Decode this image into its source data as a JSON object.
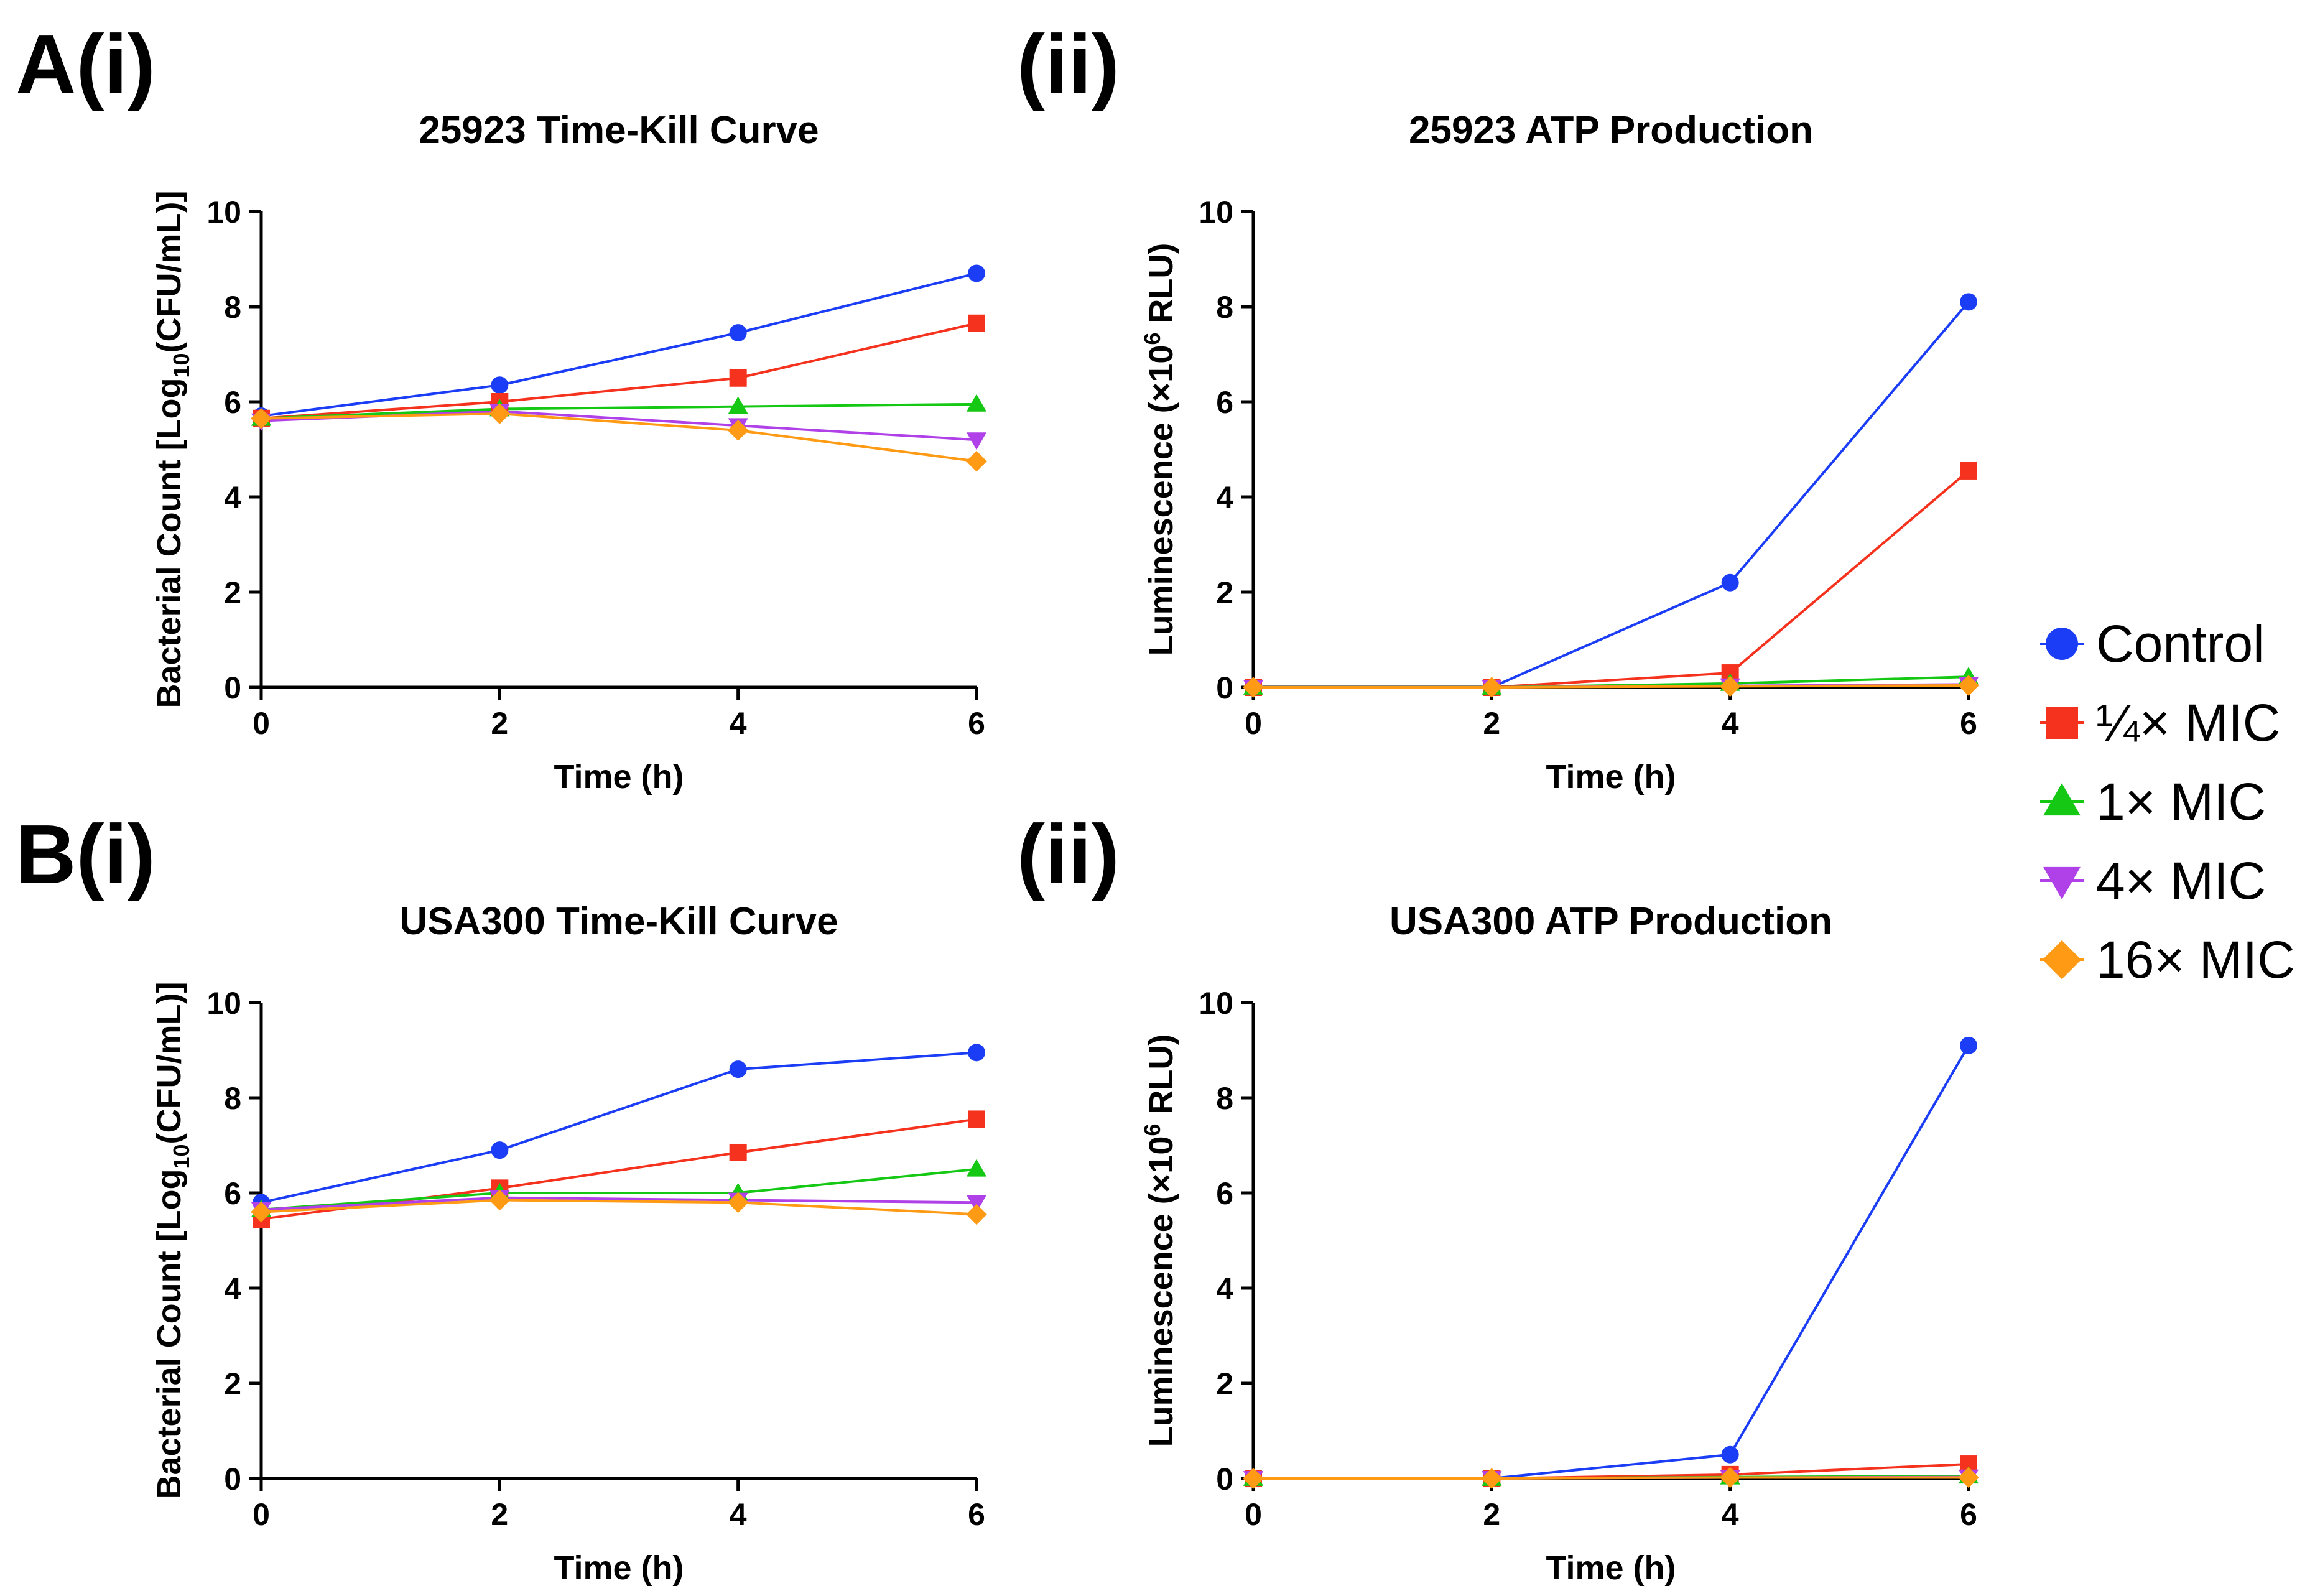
{
  "panel_labels": [
    "A(i)",
    "(ii)",
    "B(i)",
    "(ii)"
  ],
  "colors": {
    "Control": "#1a3df5",
    "quarter_mic": "#f5321e",
    "one_mic": "#14c814",
    "four_mic": "#b040e8",
    "sixteen_mic": "#ff9a14"
  },
  "legend": [
    {
      "label": "Control",
      "marker": "circle",
      "color": "#1a3df5"
    },
    {
      "label": "¼× MIC",
      "marker": "square",
      "color": "#f5321e"
    },
    {
      "label": "1× MIC",
      "marker": "triangle-up",
      "color": "#14c814"
    },
    {
      "label": "4× MIC",
      "marker": "triangle-down",
      "color": "#b040e8"
    },
    {
      "label": "16× MIC",
      "marker": "diamond",
      "color": "#ff9a14"
    }
  ],
  "chart_data": [
    {
      "type": "line",
      "title": "25923 Time-Kill Curve",
      "xlabel": "Time (h)",
      "ylabel_parts": [
        "Bacterial Count [Log",
        "10",
        "(CFU/mL)]"
      ],
      "x": [
        0,
        2,
        4,
        6
      ],
      "xlim": [
        0,
        6
      ],
      "ylim": [
        0,
        10
      ],
      "xticks": [
        0,
        2,
        4,
        6
      ],
      "yticks": [
        0,
        2,
        4,
        6,
        8,
        10
      ],
      "series": [
        {
          "name": "Control",
          "values": [
            5.7,
            6.35,
            7.45,
            8.7
          ]
        },
        {
          "name": "¼× MIC",
          "values": [
            5.65,
            6.0,
            6.5,
            7.65
          ]
        },
        {
          "name": "1× MIC",
          "values": [
            5.65,
            5.85,
            5.9,
            5.95
          ]
        },
        {
          "name": "4× MIC",
          "values": [
            5.6,
            5.8,
            5.5,
            5.2
          ]
        },
        {
          "name": "16× MIC",
          "values": [
            5.65,
            5.75,
            5.4,
            4.75
          ]
        }
      ]
    },
    {
      "type": "line",
      "title": "25923 ATP Production",
      "xlabel": "Time (h)",
      "ylabel_parts": [
        "Luminescence (×10",
        "6",
        " RLU)"
      ],
      "x": [
        0,
        2,
        4,
        6
      ],
      "xlim": [
        0,
        6
      ],
      "ylim": [
        0,
        10
      ],
      "xticks": [
        0,
        2,
        4,
        6
      ],
      "yticks": [
        0,
        2,
        4,
        6,
        8,
        10
      ],
      "series": [
        {
          "name": "Control",
          "values": [
            0,
            0,
            2.2,
            8.1
          ]
        },
        {
          "name": "¼× MIC",
          "values": [
            0,
            0,
            0.3,
            4.55
          ]
        },
        {
          "name": "1× MIC",
          "values": [
            0,
            0,
            0.08,
            0.22
          ]
        },
        {
          "name": "4× MIC",
          "values": [
            0,
            0,
            0.03,
            0.06
          ]
        },
        {
          "name": "16× MIC",
          "values": [
            0,
            0,
            0.02,
            0.04
          ]
        }
      ]
    },
    {
      "type": "line",
      "title": "USA300 Time-Kill Curve",
      "xlabel": "Time (h)",
      "ylabel_parts": [
        "Bacterial Count [Log",
        "10",
        "(CFU/mL)]"
      ],
      "x": [
        0,
        2,
        4,
        6
      ],
      "xlim": [
        0,
        6
      ],
      "ylim": [
        0,
        10
      ],
      "xticks": [
        0,
        2,
        4,
        6
      ],
      "yticks": [
        0,
        2,
        4,
        6,
        8,
        10
      ],
      "series": [
        {
          "name": "Control",
          "values": [
            5.8,
            6.9,
            8.6,
            8.95
          ]
        },
        {
          "name": "¼× MIC",
          "values": [
            5.45,
            6.1,
            6.85,
            7.55
          ]
        },
        {
          "name": "1× MIC",
          "values": [
            5.65,
            6.0,
            6.0,
            6.5
          ]
        },
        {
          "name": "4× MIC",
          "values": [
            5.65,
            5.9,
            5.85,
            5.8
          ]
        },
        {
          "name": "16× MIC",
          "values": [
            5.6,
            5.85,
            5.8,
            5.55
          ]
        }
      ]
    },
    {
      "type": "line",
      "title": "USA300 ATP Production",
      "xlabel": "Time (h)",
      "ylabel_parts": [
        "Luminescence (×10",
        "6",
        " RLU)"
      ],
      "x": [
        0,
        2,
        4,
        6
      ],
      "xlim": [
        0,
        6
      ],
      "ylim": [
        0,
        10
      ],
      "xticks": [
        0,
        2,
        4,
        6
      ],
      "yticks": [
        0,
        2,
        4,
        6,
        8,
        10
      ],
      "series": [
        {
          "name": "Control",
          "values": [
            0,
            0,
            0.5,
            9.1
          ]
        },
        {
          "name": "¼× MIC",
          "values": [
            0,
            0,
            0.08,
            0.3
          ]
        },
        {
          "name": "1× MIC",
          "values": [
            0,
            0,
            0.03,
            0.05
          ]
        },
        {
          "name": "4× MIC",
          "values": [
            0,
            0,
            0.02,
            0.03
          ]
        },
        {
          "name": "16× MIC",
          "values": [
            0,
            0,
            0.02,
            0.02
          ]
        }
      ]
    }
  ]
}
